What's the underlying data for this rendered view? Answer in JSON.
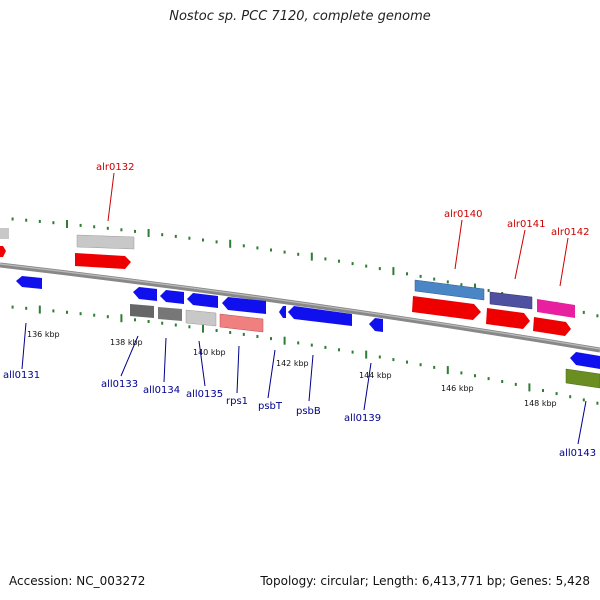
{
  "title": "Nostoc sp. PCC 7120, complete genome",
  "footer": {
    "accession": "Accession: NC_003272",
    "summary": "Topology: circular; Length: 6,413,771 bp; Genes: 5,428"
  },
  "colors": {
    "backbone": "#808080",
    "tick": "#2e7d32",
    "top_label": "#cc0000",
    "bottom_label": "#00008b"
  },
  "scale_labels": [
    "136 kbp",
    "138 kbp",
    "140 kbp",
    "142 kbp",
    "144 kbp",
    "146 kbp",
    "148 kbp"
  ],
  "top_labels": [
    "alr0132",
    "alr0140",
    "alr0141",
    "alr0142"
  ],
  "bottom_labels": [
    "all0131",
    "all0133",
    "all0134",
    "all0135",
    "rps1",
    "psbT",
    "psbB",
    "all0139",
    "all0143"
  ]
}
